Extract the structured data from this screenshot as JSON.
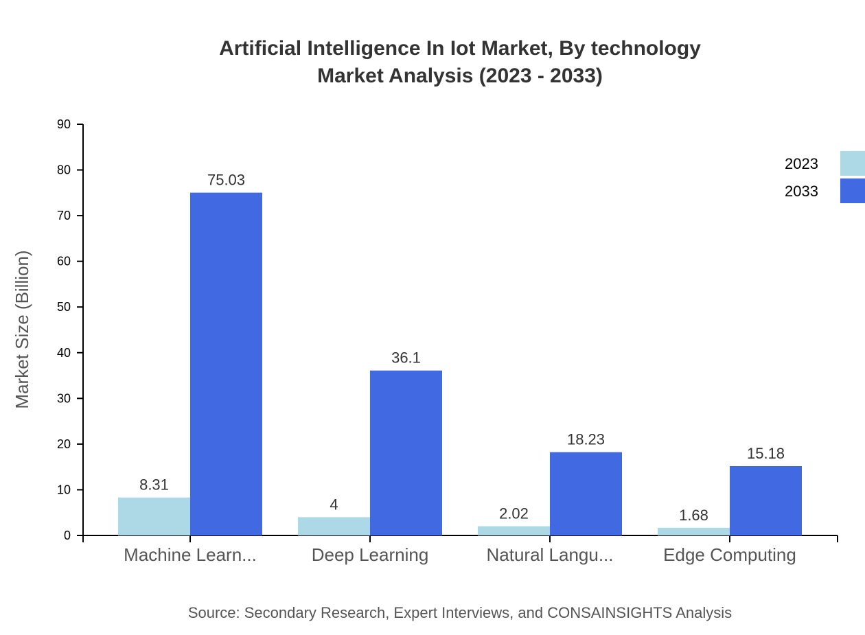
{
  "chart_data": {
    "type": "bar",
    "title": "Artificial Intelligence In Iot Market, By technology",
    "subtitle": "Market Analysis (2023 - 2033)",
    "xlabel": "",
    "ylabel": "Market Size (Billion)",
    "ylim": [
      0,
      90
    ],
    "yticks": [
      0,
      10,
      20,
      30,
      40,
      50,
      60,
      70,
      80,
      90
    ],
    "grid": false,
    "legend_position": "top-right",
    "categories": [
      "Machine Learn...",
      "Deep Learning",
      "Natural Langu...",
      "Edge Computing"
    ],
    "series": [
      {
        "name": "2023",
        "color": "#ADD8E6",
        "values": [
          8.31,
          4,
          2.02,
          1.68
        ]
      },
      {
        "name": "2033",
        "color": "#4169E1",
        "values": [
          75.03,
          36.1,
          18.23,
          15.18
        ]
      }
    ],
    "source": "Source: Secondary Research, Expert Interviews, and CONSAINSIGHTS Analysis"
  }
}
